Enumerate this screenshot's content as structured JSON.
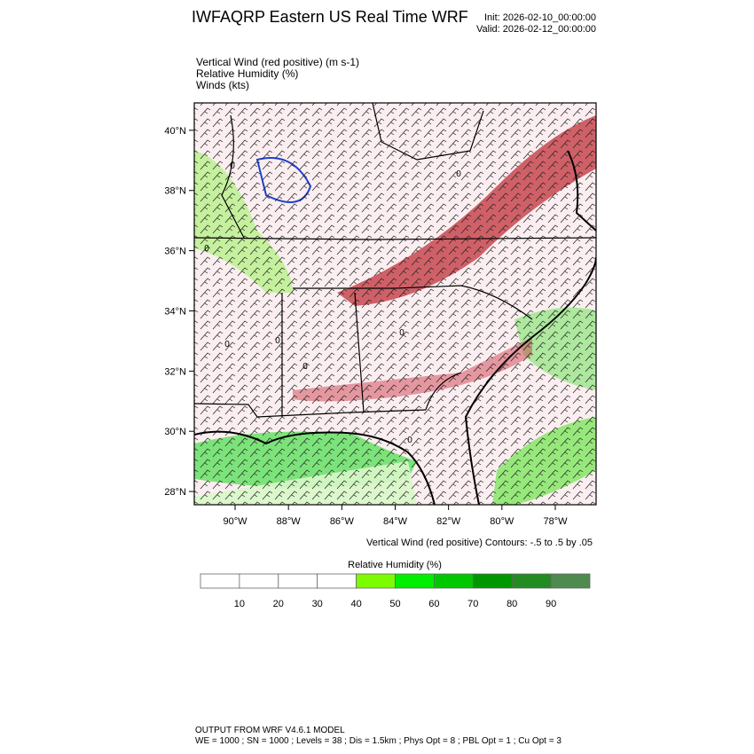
{
  "header": {
    "title": "IWFAQRP Eastern US Real Time WRF",
    "init": "Init: 2026-02-10_00:00:00",
    "valid": "Valid: 2026-02-12_00:00:00"
  },
  "fields": [
    "Vertical Wind (red positive)   (m s-1)",
    "Relative Humidity   (%)",
    "Winds   (kts)"
  ],
  "map": {
    "lat_range": [
      27.56,
      40.91
    ],
    "lon_range": [
      -91.53,
      -76.47
    ],
    "lat_ticks": [
      {
        "value": 40,
        "label": "40°N"
      },
      {
        "value": 38,
        "label": "38°N"
      },
      {
        "value": 36,
        "label": "36°N"
      },
      {
        "value": 34,
        "label": "34°N"
      },
      {
        "value": 32,
        "label": "32°N"
      },
      {
        "value": 30,
        "label": "30°N"
      },
      {
        "value": 28,
        "label": "28°N"
      }
    ],
    "lon_ticks": [
      {
        "value": -90,
        "label": "90°W"
      },
      {
        "value": -88,
        "label": "88°W"
      },
      {
        "value": -86,
        "label": "86°W"
      },
      {
        "value": -84,
        "label": "84°W"
      },
      {
        "value": -82,
        "label": "82°W"
      },
      {
        "value": -80,
        "label": "80°W"
      },
      {
        "value": -78,
        "label": "78°W"
      }
    ],
    "contour_labels": [
      "0",
      "0",
      "0",
      "0",
      "0",
      "0",
      "0",
      "0"
    ]
  },
  "contour_note": "Vertical Wind (red positive) Contours: -.5 to .5 by .05",
  "colorbar": {
    "title": "Relative Humidity  (%)",
    "levels": [
      10,
      20,
      30,
      40,
      50,
      60,
      70,
      80,
      90
    ],
    "colors": [
      "#ffffff",
      "#ffffff",
      "#ffffff",
      "#ffffff",
      "#7cfc00",
      "#00ee00",
      "#00c800",
      "#009600",
      "#228b22",
      "#4f8b4f"
    ]
  },
  "footer": [
    "OUTPUT FROM WRF V4.6.1 MODEL",
    "WE = 1000 ; SN = 1000 ; Levels = 38 ; Dis = 1.5km ; Phys Opt = 8 ; PBL Opt = 1 ; Cu Opt = 3"
  ]
}
